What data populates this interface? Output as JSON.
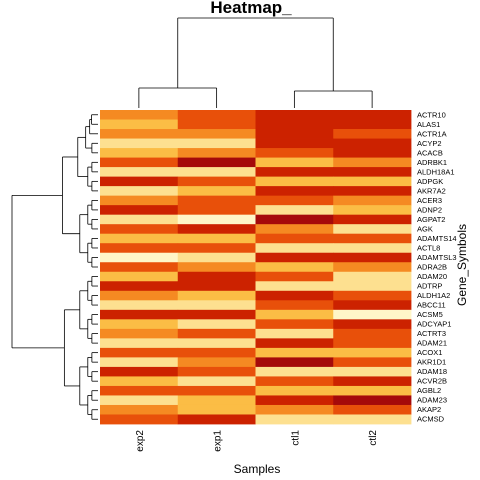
{
  "chart_data": {
    "type": "heatmap",
    "title": "Heatmap_",
    "xlabel": "Samples",
    "ylabel": "Gene_Symbols",
    "columns": [
      "exp2",
      "exp1",
      "ctl1",
      "ctl2"
    ],
    "column_dendrogram": [
      [
        "exp2",
        "exp1"
      ],
      [
        "ctl1",
        "ctl2"
      ]
    ],
    "row_labels": [
      "ACTR10",
      "ALAS1",
      "ACTR1A",
      "ACYP2",
      "ACACB",
      "ADRBK1",
      "ALDH18A1",
      "ADPGK",
      "AKR7A2",
      "ACER3",
      "ADNP2",
      "AGPAT2",
      "AGK",
      "ADAMTS14",
      "ACTL8",
      "ADAMTSL3",
      "ADRA2B",
      "ADAM20",
      "ADTRP",
      "ALDH1A2",
      "ABCC11",
      "ACSM5",
      "ADCYAP1",
      "ACTRT3",
      "ADAM21",
      "ACOX1",
      "AKR1D1",
      "ADAM18",
      "ACVR2B",
      "AGBL2",
      "ADAM23",
      "AKAP2",
      "ACMSD"
    ],
    "color_scale": [
      "#a50a0a",
      "#cc2200",
      "#e8500a",
      "#f58a22",
      "#fbbd45",
      "#fde090",
      "#fff6c8"
    ],
    "values": [
      [
        0.55,
        0.4,
        0.1,
        0.2
      ],
      [
        0.7,
        0.35,
        0.15,
        0.1
      ],
      [
        0.45,
        0.5,
        0.1,
        0.3
      ],
      [
        0.8,
        0.9,
        0.2,
        0.15
      ],
      [
        0.6,
        0.55,
        0.3,
        0.1
      ],
      [
        0.3,
        0.05,
        0.6,
        0.5
      ],
      [
        0.75,
        0.85,
        0.15,
        0.2
      ],
      [
        0.2,
        0.3,
        0.7,
        0.65
      ],
      [
        0.9,
        0.7,
        0.1,
        0.15
      ],
      [
        0.5,
        0.4,
        0.35,
        0.45
      ],
      [
        0.15,
        0.25,
        0.85,
        0.7
      ],
      [
        0.85,
        0.95,
        0.05,
        0.2
      ],
      [
        0.4,
        0.1,
        0.55,
        0.85
      ],
      [
        0.65,
        0.6,
        0.25,
        0.35
      ],
      [
        0.25,
        0.3,
        0.75,
        0.9
      ],
      [
        0.95,
        0.8,
        0.15,
        0.1
      ],
      [
        0.35,
        0.45,
        0.6,
        0.55
      ],
      [
        0.7,
        0.15,
        0.4,
        0.75
      ],
      [
        0.1,
        0.2,
        0.9,
        0.8
      ],
      [
        0.55,
        0.65,
        0.2,
        0.3
      ],
      [
        0.8,
        0.75,
        0.3,
        0.1
      ],
      [
        0.2,
        0.15,
        0.65,
        0.95
      ],
      [
        0.6,
        0.9,
        0.25,
        0.15
      ],
      [
        0.45,
        0.35,
        0.8,
        0.4
      ],
      [
        0.9,
        0.8,
        0.1,
        0.25
      ],
      [
        0.3,
        0.4,
        0.7,
        0.6
      ],
      [
        0.75,
        0.55,
        0.05,
        0.3
      ],
      [
        0.15,
        0.25,
        0.85,
        0.75
      ],
      [
        0.65,
        0.85,
        0.35,
        0.2
      ],
      [
        0.4,
        0.3,
        0.6,
        0.7
      ],
      [
        0.85,
        0.7,
        0.2,
        0.05
      ],
      [
        0.5,
        0.6,
        0.45,
        0.35
      ],
      [
        0.25,
        0.2,
        0.75,
        0.9
      ]
    ]
  }
}
